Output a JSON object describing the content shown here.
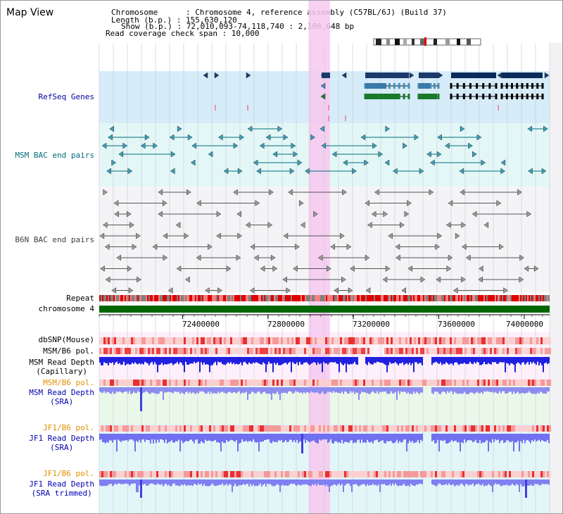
{
  "view": {
    "title": "Map View",
    "info": {
      "chromosome_line": "Chromosome      : Chromosome 4, reference assembly (C57BL/6J) (Build 37)",
      "length_line": "Length (b.p.) : 155,630,120",
      "show_line": "Show (b.p.) : 72,010,093-74,118,740 : 2,108,648 bp",
      "coverage_line": "Read coverage check span : 10,000"
    }
  },
  "tracks": {
    "refseq": {
      "label": "RefSeq Genes",
      "color": "#0000a0"
    },
    "msm_bac": {
      "label": "MSM BAC end pairs",
      "color": "#006c7a"
    },
    "b6n_bac": {
      "label": "B6N BAC end pairs",
      "color": "#404040"
    },
    "repeat": {
      "label": "Repeat"
    },
    "chromosome": {
      "label": "chromosome 4"
    },
    "dbsnp": {
      "label": "dbSNP(Mouse)"
    },
    "msm_pol": {
      "label": "MSM/B6 pol."
    },
    "msm_depth_cap": {
      "line1": "MSM Read Depth",
      "line2": "(Capillary)"
    },
    "msm_pol2": {
      "label": "MSM/B6 pol.",
      "color": "#e09000"
    },
    "msm_depth_sra": {
      "line1": "MSM Read Depth",
      "line2": "(SRA)",
      "color": "#0000b0"
    },
    "jf1_pol": {
      "label": "JF1/B6 pol.",
      "color": "#e09000"
    },
    "jf1_depth_sra": {
      "line1": "JF1 Read Depth",
      "line2": "(SRA)",
      "color": "#0000b0"
    },
    "jf1_pol2": {
      "label": "JF1/B6 pol.",
      "color": "#e09000"
    },
    "jf1_depth_trim": {
      "line1": "JF1 Read Depth",
      "line2": "(SRA trimmed)",
      "color": "#0000b0"
    }
  },
  "axis": {
    "ticks": [
      "72400000",
      "72800000",
      "73200000",
      "73600000",
      "74000000"
    ],
    "tick_values": [
      72400000,
      72800000,
      73200000,
      73600000,
      74000000
    ],
    "range": [
      72010093,
      74118740
    ]
  },
  "highlight_region": {
    "start": 72990000,
    "end": 73090000,
    "color": "#f7c8f0"
  }
}
